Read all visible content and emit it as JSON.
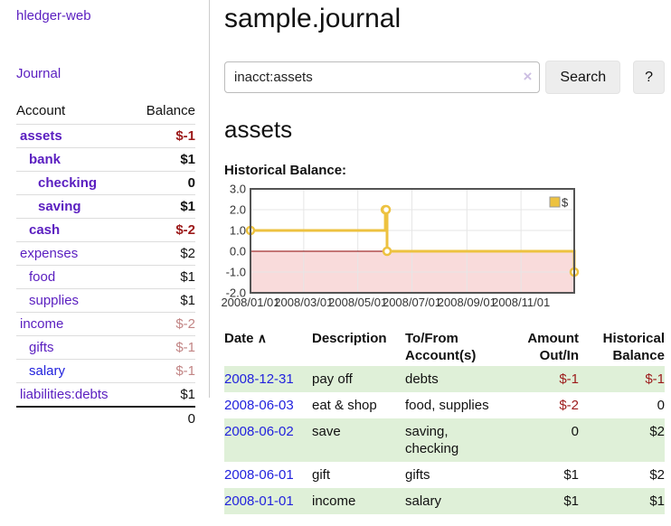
{
  "app": {
    "title": "hledger-web"
  },
  "colors": {
    "link_purple": "#5a1ec0",
    "link_blue": "#2222dd",
    "negative_strong": "#9c1a1a",
    "negative_soft": "#c28585",
    "row_green": "#dff0d8",
    "chart_line": "#edc240",
    "chart_negative_fill": "#f9dbdb",
    "chart_zero_line": "#8b0000",
    "chart_grid": "#e6e6e6",
    "chart_border": "#545454"
  },
  "icons": {
    "sort_asc": "∧",
    "clear": "×"
  },
  "sidebar": {
    "journal_label": "Journal",
    "accounts": {
      "header_account": "Account",
      "header_balance": "Balance",
      "rows": [
        {
          "account": "assets",
          "indent": 0,
          "bold": true,
          "balance": "$-1",
          "balance_class": "neg-strong"
        },
        {
          "account": "bank",
          "indent": 1,
          "bold": true,
          "balance": "$1",
          "balance_class": ""
        },
        {
          "account": "checking",
          "indent": 2,
          "bold": true,
          "balance": "0",
          "balance_class": ""
        },
        {
          "account": "saving",
          "indent": 2,
          "bold": true,
          "balance": "$1",
          "balance_class": ""
        },
        {
          "account": "cash",
          "indent": 1,
          "bold": true,
          "balance": "$-2",
          "balance_class": "neg-strong"
        },
        {
          "account": "expenses",
          "indent": 0,
          "bold": false,
          "balance": "$2",
          "balance_class": ""
        },
        {
          "account": "food",
          "indent": 1,
          "bold": false,
          "balance": "$1",
          "balance_class": ""
        },
        {
          "account": "supplies",
          "indent": 1,
          "bold": false,
          "balance": "$1",
          "balance_class": ""
        },
        {
          "account": "income",
          "indent": 0,
          "bold": false,
          "balance": "$-2",
          "balance_class": "neg-soft"
        },
        {
          "account": "gifts",
          "indent": 1,
          "bold": false,
          "balance": "$-1",
          "balance_class": "neg-soft"
        },
        {
          "account": "salary",
          "indent": 1,
          "bold": false,
          "balance": "$-1",
          "balance_class": "neg-soft",
          "link": "blue"
        },
        {
          "account": "liabilities:debts",
          "indent": 0,
          "bold": false,
          "balance": "$1",
          "balance_class": ""
        }
      ],
      "total": "0"
    }
  },
  "main": {
    "title": "sample.journal",
    "search": {
      "value": "inacct:assets",
      "clear_icon": "×",
      "button_label": "Search",
      "help_label": "?"
    },
    "account_heading": "assets",
    "register": {
      "headers": [
        "Date",
        "Description",
        "To/From Account(s)",
        "Amount Out/In",
        "Historical Balance"
      ],
      "rows": [
        {
          "date": "2008-12-31",
          "description": "pay off",
          "accounts": "debts",
          "amount": "$-1",
          "balance": "$-1"
        },
        {
          "date": "2008-06-03",
          "description": "eat & shop",
          "accounts": "food, supplies",
          "amount": "$-2",
          "balance": "0"
        },
        {
          "date": "2008-06-02",
          "description": "save",
          "accounts": "saving, checking",
          "amount": "0",
          "balance": "$2"
        },
        {
          "date": "2008-06-01",
          "description": "gift",
          "accounts": "gifts",
          "amount": "$1",
          "balance": "$2"
        },
        {
          "date": "2008-01-01",
          "description": "income",
          "accounts": "salary",
          "amount": "$1",
          "balance": "$1"
        }
      ]
    }
  },
  "chart_data": {
    "type": "line",
    "step": true,
    "title": "Historical Balance:",
    "ylim": [
      -2,
      3
    ],
    "yticks": [
      {
        "v": 3,
        "label": "3.0"
      },
      {
        "v": 2,
        "label": "2.0"
      },
      {
        "v": 1,
        "label": "1.0"
      },
      {
        "v": 0,
        "label": "0.0"
      },
      {
        "v": -1,
        "label": "-1.0"
      },
      {
        "v": -2,
        "label": "-2.0"
      }
    ],
    "xrange": [
      "2008/01/01",
      "2008/12/31"
    ],
    "xticks": [
      {
        "date": "2008/01/01",
        "label": "2008/01/01"
      },
      {
        "date": "2008/03/01",
        "label": "2008/03/01"
      },
      {
        "date": "2008/05/01",
        "label": "2008/05/01"
      },
      {
        "date": "2008/07/01",
        "label": "2008/07/01"
      },
      {
        "date": "2008/09/01",
        "label": "2008/09/01"
      },
      {
        "date": "2008/11/01",
        "label": "2008/11/01"
      }
    ],
    "series": [
      {
        "name": "$",
        "points": [
          {
            "date": "2008/01/01",
            "value": 1
          },
          {
            "date": "2008/06/01",
            "value": 2
          },
          {
            "date": "2008/06/02",
            "value": 2
          },
          {
            "date": "2008/06/03",
            "value": 0
          },
          {
            "date": "2008/12/31",
            "value": -1
          }
        ]
      }
    ],
    "legend": [
      "$"
    ],
    "legend_position": "top-right",
    "grid": true,
    "negative_region_shaded": true
  }
}
